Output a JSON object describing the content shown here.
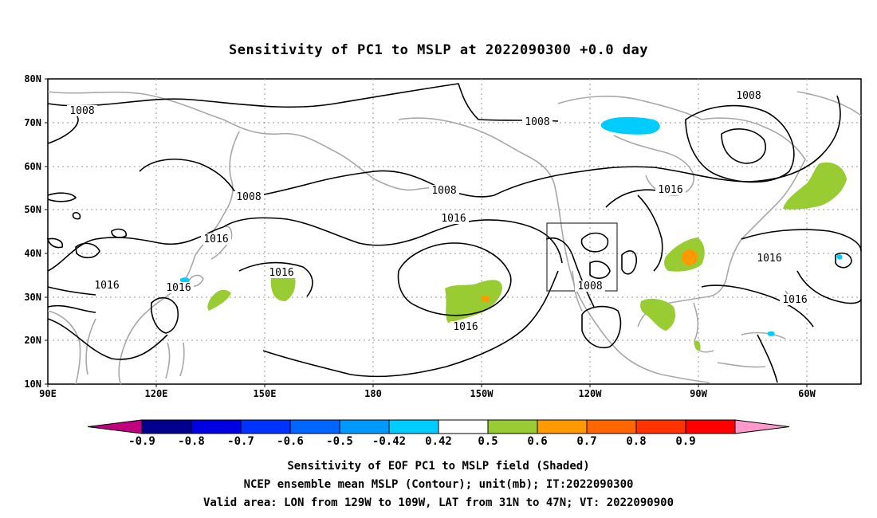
{
  "title": "Sensitivity of PC1 to MSLP at 2022090300 +0.0 day",
  "axes": {
    "lat_labels": [
      "80N",
      "70N",
      "60N",
      "50N",
      "40N",
      "30N",
      "20N",
      "10N"
    ],
    "lon_labels": [
      "90E",
      "120E",
      "150E",
      "180",
      "150W",
      "120W",
      "90W",
      "60W"
    ]
  },
  "contour_labels": [
    "1008",
    "1008",
    "1008",
    "1008",
    "1008",
    "1008",
    "1016",
    "1016",
    "1016",
    "1016",
    "1016",
    "1016",
    "1016",
    "1016"
  ],
  "colorbar": {
    "labels": [
      "-0.9",
      "-0.8",
      "-0.7",
      "-0.6",
      "-0.5",
      "-0.42",
      "0.42",
      "0.5",
      "0.6",
      "0.7",
      "0.8",
      "0.9"
    ],
    "colors": [
      "#c0007f",
      "#00008f",
      "#0000e0",
      "#0033ff",
      "#0066ff",
      "#0099ff",
      "#00ccff",
      "#ffffff",
      "#99cc33",
      "#ff9900",
      "#ff6600",
      "#ff3300",
      "#ff0000",
      "#ff99cc"
    ]
  },
  "valid_box": {
    "lon_west": -129,
    "lon_east": -109,
    "lat_south": 31,
    "lat_north": 47
  },
  "footer": {
    "line1": "Sensitivity of EOF PC1 to MSLP field (Shaded)",
    "line2": "NCEP ensemble mean MSLP (Contour); unit(mb); IT:2022090300",
    "line3": "Valid area: LON from 129W to 109W, LAT from 31N to 47N; VT: 2022090900"
  }
}
